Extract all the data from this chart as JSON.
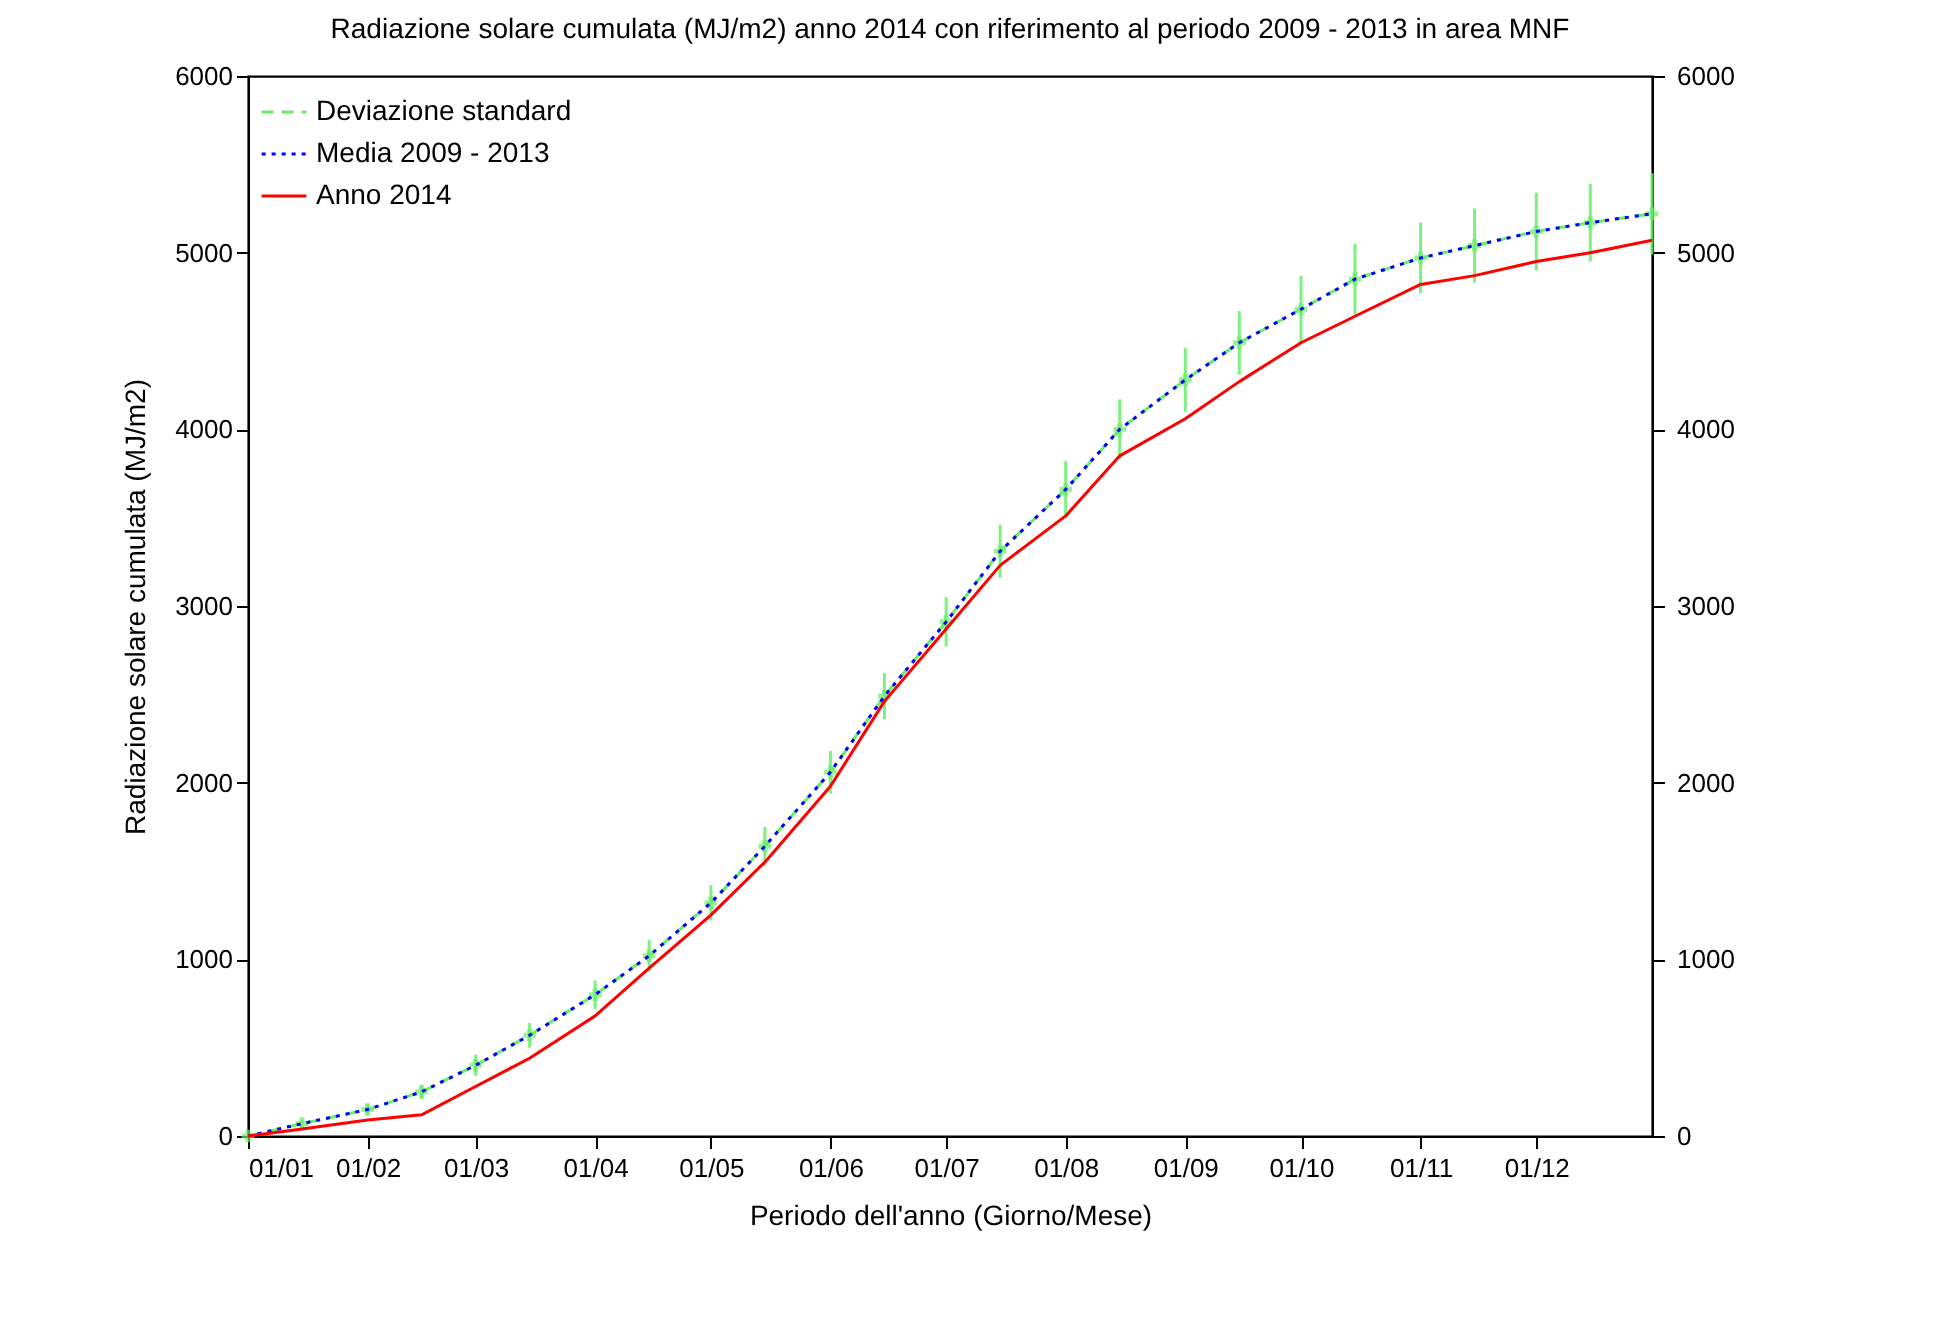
{
  "chart_data": {
    "type": "line",
    "title": "Radiazione solare cumulata (MJ/m2) anno 2014 con riferimento al periodo 2009 - 2013 in area MNF",
    "xlabel": "Periodo dell'anno (Giorno/Mese)",
    "ylabel": "Radiazione solare cumulata (MJ/m2)",
    "x": [
      "--01-01",
      "--01-15",
      "--02-01",
      "--02-15",
      "--03-01",
      "--03-15",
      "--04-01",
      "--04-15",
      "--05-01",
      "--05-15",
      "--06-01",
      "--06-15",
      "--07-01",
      "--07-15",
      "--08-01",
      "--08-15",
      "--09-01",
      "--09-15",
      "--10-01",
      "--10-15",
      "--11-01",
      "--11-15",
      "--12-01",
      "--12-15",
      "--12-31"
    ],
    "series": [
      {
        "name": "Deviazione standard",
        "color": "#66ee66",
        "line_style": "dashed",
        "marker": "cross",
        "values": [
          0,
          70,
          150,
          250,
          400,
          570,
          800,
          1020,
          1320,
          1640,
          2060,
          2490,
          2910,
          3310,
          3660,
          4000,
          4280,
          4490,
          4680,
          4850,
          4970,
          5040,
          5120,
          5170,
          5220
        ],
        "errors": [
          0,
          20,
          30,
          40,
          60,
          70,
          80,
          90,
          100,
          110,
          120,
          130,
          140,
          150,
          160,
          170,
          180,
          180,
          190,
          200,
          200,
          210,
          220,
          220,
          230
        ]
      },
      {
        "name": "Media 2009 - 2013",
        "color": "#0000ff",
        "line_style": "dotted",
        "values": [
          0,
          70,
          150,
          250,
          400,
          570,
          800,
          1020,
          1320,
          1640,
          2060,
          2490,
          2910,
          3310,
          3660,
          4000,
          4280,
          4490,
          4680,
          4850,
          4970,
          5040,
          5120,
          5170,
          5220
        ]
      },
      {
        "name": "Anno 2014",
        "color": "#ff0000",
        "line_style": "solid",
        "values": [
          0,
          40,
          90,
          120,
          280,
          440,
          680,
          950,
          1250,
          1550,
          1980,
          2460,
          2870,
          3230,
          3510,
          3850,
          4060,
          4270,
          4490,
          4640,
          4820,
          4870,
          4950,
          5000,
          5070
        ]
      }
    ],
    "xlim": [
      "--01-01",
      "--12-31"
    ],
    "xticks": [
      {
        "value": "--01-01",
        "label": "01/01"
      },
      {
        "value": "--02-01",
        "label": "01/02"
      },
      {
        "value": "--03-01",
        "label": "01/03"
      },
      {
        "value": "--04-01",
        "label": "01/04"
      },
      {
        "value": "--05-01",
        "label": "01/05"
      },
      {
        "value": "--06-01",
        "label": "01/06"
      },
      {
        "value": "--07-01",
        "label": "01/07"
      },
      {
        "value": "--08-01",
        "label": "01/08"
      },
      {
        "value": "--09-01",
        "label": "01/09"
      },
      {
        "value": "--10-01",
        "label": "01/10"
      },
      {
        "value": "--11-01",
        "label": "01/11"
      },
      {
        "value": "--12-01",
        "label": "01/12"
      }
    ],
    "ylim": [
      0,
      6000
    ],
    "yticks": [
      0,
      1000,
      2000,
      3000,
      4000,
      5000,
      6000
    ],
    "y2lim": [
      0,
      6000
    ],
    "y2ticks": [
      0,
      1000,
      2000,
      3000,
      4000,
      5000,
      6000
    ],
    "grid": false,
    "legend": "top left"
  }
}
